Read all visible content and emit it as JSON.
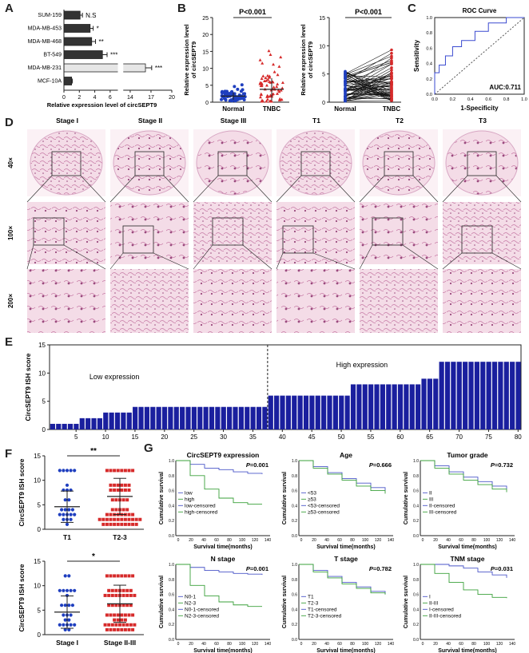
{
  "panel_labels": {
    "a": "A",
    "b": "B",
    "c": "C",
    "d": "D",
    "e": "E",
    "f": "F",
    "g": "G"
  },
  "chart_data": [
    {
      "id": "A",
      "type": "bar",
      "orientation": "horizontal",
      "categories": [
        "SUM-159",
        "MDA-MB-453",
        "MDA-MB-468",
        "BT-549",
        "MDA-MB-231",
        "MCF-10A"
      ],
      "values": [
        2.1,
        3.4,
        3.6,
        5.0,
        16.2,
        1.0
      ],
      "errors": [
        0.3,
        0.4,
        0.5,
        0.6,
        0.9,
        0.1
      ],
      "significance": [
        "N.S",
        "*",
        "**",
        "***",
        "***",
        ""
      ],
      "xlabel": "Relative expression level of circSEPT9",
      "xticks": [
        "0",
        "2",
        "4",
        "6",
        "14",
        "17",
        "20"
      ],
      "xlim": [
        0,
        20
      ],
      "axis_break": [
        7,
        13
      ]
    },
    {
      "id": "B1",
      "type": "scatter",
      "categories": [
        "Normal",
        "TNBC"
      ],
      "ylabel": "Relative expression level of circSEPT9",
      "yticks": [
        "0",
        "5",
        "10",
        "15",
        "20",
        "25"
      ],
      "ylim": [
        0,
        25
      ],
      "significance": "P<0.001",
      "means": [
        1.8,
        3.8
      ],
      "sd": [
        1.1,
        3.3
      ],
      "series_colors": [
        "#1f3fbf",
        "#d62a2a"
      ]
    },
    {
      "id": "B2",
      "type": "line",
      "categories": [
        "Normal",
        "TNBC"
      ],
      "ylabel": "Relative expression level of circSEPT9",
      "yticks": [
        "0",
        "5",
        "10",
        "15"
      ],
      "ylim": [
        0,
        15
      ],
      "significance": "P<0.001"
    },
    {
      "id": "C",
      "type": "line",
      "title": "ROC Curve",
      "xlabel": "1-Specificity",
      "ylabel": "Sensitivity",
      "xticks": [
        "0.0",
        "0.2",
        "0.4",
        "0.6",
        "0.8",
        "1.0"
      ],
      "yticks": [
        "0.0",
        "0.2",
        "0.4",
        "0.6",
        "0.8",
        "1.0"
      ],
      "xlim": [
        0,
        1
      ],
      "ylim": [
        0,
        1
      ],
      "annotation": "AUC:0.711",
      "x": [
        0,
        0,
        0.05,
        0.05,
        0.12,
        0.12,
        0.2,
        0.2,
        0.3,
        0.3,
        0.45,
        0.45,
        0.6,
        0.6,
        0.8,
        0.8,
        1.0
      ],
      "y": [
        0,
        0.28,
        0.28,
        0.38,
        0.38,
        0.5,
        0.5,
        0.62,
        0.62,
        0.7,
        0.7,
        0.82,
        0.82,
        0.93,
        0.93,
        1.0,
        1.0
      ]
    },
    {
      "id": "E",
      "type": "bar",
      "ylabel": "CircSEPT9 ISH score",
      "yticks": [
        "0",
        "5",
        "10",
        "15"
      ],
      "ylim": [
        0,
        15
      ],
      "xticks": [
        "5",
        "10",
        "15",
        "20",
        "25",
        "30",
        "35",
        "40",
        "45",
        "50",
        "55",
        "60",
        "65",
        "70",
        "75",
        "80"
      ],
      "xlim": [
        1,
        81
      ],
      "annotations": [
        "Low expression",
        "High expression"
      ],
      "divider": 37.5,
      "segments": [
        {
          "from": 1,
          "to": 5,
          "value": 1
        },
        {
          "from": 6,
          "to": 9,
          "value": 2
        },
        {
          "from": 10,
          "to": 14,
          "value": 3
        },
        {
          "from": 15,
          "to": 37,
          "value": 4
        },
        {
          "from": 38,
          "to": 51,
          "value": 6
        },
        {
          "from": 52,
          "to": 63,
          "value": 8
        },
        {
          "from": 64,
          "to": 66,
          "value": 9
        },
        {
          "from": 67,
          "to": 80,
          "value": 12
        }
      ]
    },
    {
      "id": "F1",
      "type": "scatter",
      "categories": [
        "T1",
        "T2-3"
      ],
      "ylabel": "CircSEPT9 ISH score",
      "yticks": [
        "0",
        "5",
        "10",
        "15"
      ],
      "ylim": [
        0,
        15
      ],
      "significance": "**",
      "means": [
        4.6,
        6.7
      ],
      "sd": [
        3.2,
        3.7
      ],
      "series_colors": [
        "#1f3fbf",
        "#d62a2a"
      ]
    },
    {
      "id": "F2",
      "type": "scatter",
      "categories": [
        "Stage I",
        "Stage II-III"
      ],
      "ylabel": "CircSEPT9 ISH score",
      "yticks": [
        "0",
        "5",
        "10",
        "15"
      ],
      "ylim": [
        0,
        15
      ],
      "significance": "*",
      "means": [
        4.6,
        6.3
      ],
      "sd": [
        3.3,
        3.8
      ],
      "series_colors": [
        "#1f3fbf",
        "#d62a2a"
      ]
    },
    {
      "id": "G",
      "type": "line",
      "panels": [
        {
          "title": "CircSEPT9 expression",
          "p": "=0.001",
          "legend": [
            "low",
            "high",
            "low-censored",
            "high-censored"
          ]
        },
        {
          "title": "Age",
          "p": "=0.666",
          "legend": [
            "<53",
            "≥53",
            "<53-censored",
            "≥53-censored"
          ]
        },
        {
          "title": "Tumor grade",
          "p": "=0.732",
          "legend": [
            "II",
            "III",
            "II-censored",
            "III-censored"
          ]
        },
        {
          "title": "N stage",
          "p": "=0.001",
          "legend": [
            "N0-1",
            "N2-3",
            "N0-1-censored",
            "N2-3-censored"
          ]
        },
        {
          "title": "T stage",
          "p": "=0.782",
          "legend": [
            "T1",
            "T2-3",
            "T1-censored",
            "T2-3-censored"
          ]
        },
        {
          "title": "TNM stage",
          "p": "=0.031",
          "legend": [
            "I",
            "II-III",
            "I-censored",
            "II-III-censored"
          ]
        }
      ],
      "xlabel": "Survival time(months)",
      "ylabel": "Cumulative survival",
      "xticks": [
        "0",
        "20",
        "40",
        "60",
        "80",
        "100",
        "120",
        "140"
      ],
      "yticks": [
        "0.0",
        "0.2",
        "0.4",
        "0.6",
        "0.8",
        "1.0"
      ],
      "p_label": "P"
    }
  ],
  "panel_d": {
    "columns": [
      "Stage I",
      "Stage II",
      "Stage III",
      "T1",
      "T2",
      "T3"
    ],
    "rows": [
      "40×",
      "100×",
      "200×"
    ]
  },
  "colors": {
    "blue": "#1f3fbf",
    "red": "#d62a2a",
    "bar_dark": "#1a1f9e",
    "green": "#3aa03a",
    "tissue_bg": "#f2d7e3",
    "tissue_dark": "#b05a8a"
  }
}
